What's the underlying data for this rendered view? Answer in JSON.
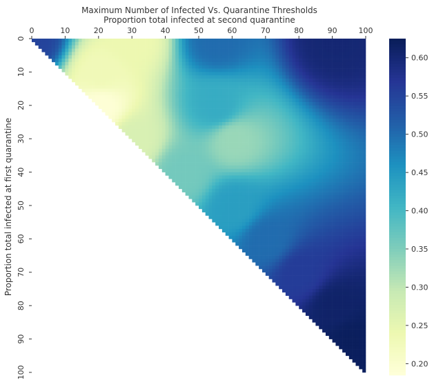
{
  "chart_data": {
    "type": "heatmap",
    "title": "Maximum Number of Infected Vs. Quarantine Thresholds",
    "xlabel": "Proportion total infected at second quarantine",
    "ylabel": "Proportion total infected at first quarantine",
    "x_ticks": [
      "0",
      "10",
      "20",
      "30",
      "40",
      "50",
      "60",
      "70",
      "80",
      "90",
      "100"
    ],
    "y_ticks": [
      "0",
      "10",
      "20",
      "30",
      "40",
      "50",
      "60",
      "70",
      "80",
      "90",
      "100"
    ],
    "x_axis_position": "top",
    "grid_size": 100,
    "mask": "lower-left triangle shown (x >= y); cells with x < y are blank",
    "colorbar": {
      "range": [
        0.185,
        0.625
      ],
      "ticks": [
        "0.20",
        "0.25",
        "0.30",
        "0.35",
        "0.40",
        "0.45",
        "0.50",
        "0.55",
        "0.60"
      ],
      "colormap": "YlGnBu",
      "stops": [
        "#ffffd9",
        "#edf8b1",
        "#c7e9b4",
        "#7fcdbb",
        "#41b6c4",
        "#1d91c0",
        "#225ea8",
        "#253494",
        "#081d58"
      ]
    },
    "value_profile": {
      "description": "Approximate values: minimum (~0.19) near first=20, second=20; high (~0.62) at first>=80 and at the top-right corner (first~0, second~90); ~0.4-0.5 band near first=50 and second=50-60",
      "anchors": [
        {
          "first": 0,
          "second": 0,
          "value": 0.55
        },
        {
          "first": 0,
          "second": 30,
          "value": 0.24
        },
        {
          "first": 0,
          "second": 55,
          "value": 0.5
        },
        {
          "first": 0,
          "second": 90,
          "value": 0.6
        },
        {
          "first": 10,
          "second": 20,
          "value": 0.23
        },
        {
          "first": 20,
          "second": 20,
          "value": 0.19
        },
        {
          "first": 20,
          "second": 55,
          "value": 0.42
        },
        {
          "first": 30,
          "second": 30,
          "value": 0.27
        },
        {
          "first": 30,
          "second": 60,
          "value": 0.33
        },
        {
          "first": 40,
          "second": 45,
          "value": 0.36
        },
        {
          "first": 50,
          "second": 60,
          "value": 0.44
        },
        {
          "first": 60,
          "second": 70,
          "value": 0.5
        },
        {
          "first": 70,
          "second": 80,
          "value": 0.56
        },
        {
          "first": 80,
          "second": 90,
          "value": 0.61
        },
        {
          "first": 90,
          "second": 95,
          "value": 0.62
        }
      ]
    }
  }
}
